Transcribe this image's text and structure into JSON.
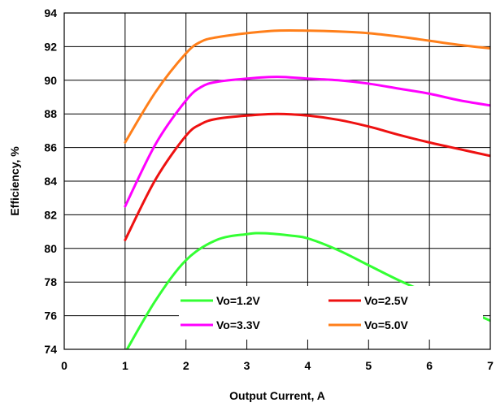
{
  "chart_data": {
    "type": "line",
    "xlabel": "Output Current, A",
    "ylabel": "Efficiency, %",
    "xlim": [
      0,
      7
    ],
    "ylim": [
      74,
      94
    ],
    "x_ticks": [
      0,
      1,
      2,
      3,
      4,
      5,
      6,
      7
    ],
    "y_ticks": [
      74,
      76,
      78,
      80,
      82,
      84,
      86,
      88,
      90,
      92,
      94
    ],
    "grid": true,
    "legend_position": "bottom-center",
    "series": [
      {
        "name": "Vo=1.2V",
        "color": "#33ff33",
        "x": [
          1.0,
          1.5,
          2.0,
          2.5,
          3.0,
          3.3,
          3.75,
          4.0,
          4.5,
          5.0,
          5.5,
          6.0,
          6.5,
          7.0
        ],
        "y": [
          73.8,
          76.9,
          79.3,
          80.5,
          80.85,
          80.9,
          80.75,
          80.6,
          79.9,
          79.0,
          78.1,
          77.3,
          76.5,
          75.7
        ]
      },
      {
        "name": "Vo=2.5V",
        "color": "#ee1111",
        "x": [
          1.0,
          1.5,
          2.0,
          2.25,
          2.5,
          3.0,
          3.5,
          4.0,
          4.5,
          5.0,
          5.5,
          6.0,
          6.5,
          7.0
        ],
        "y": [
          80.5,
          84.1,
          86.7,
          87.4,
          87.7,
          87.9,
          88.0,
          87.9,
          87.65,
          87.25,
          86.75,
          86.3,
          85.9,
          85.5
        ]
      },
      {
        "name": "Vo=3.3V",
        "color": "#ff00ff",
        "x": [
          1.0,
          1.5,
          2.0,
          2.25,
          2.5,
          3.0,
          3.5,
          4.0,
          4.5,
          5.0,
          5.5,
          6.0,
          6.5,
          7.0
        ],
        "y": [
          82.5,
          86.2,
          88.8,
          89.6,
          89.9,
          90.1,
          90.2,
          90.1,
          90.0,
          89.8,
          89.5,
          89.2,
          88.8,
          88.5
        ]
      },
      {
        "name": "Vo=5.0V",
        "color": "#ff7f1a",
        "x": [
          1.0,
          1.5,
          2.0,
          2.25,
          2.5,
          3.0,
          3.5,
          4.0,
          4.5,
          5.0,
          5.5,
          6.0,
          6.5,
          7.0
        ],
        "y": [
          86.3,
          89.3,
          91.6,
          92.3,
          92.55,
          92.8,
          92.95,
          92.95,
          92.9,
          92.8,
          92.6,
          92.35,
          92.1,
          91.9
        ]
      }
    ]
  }
}
